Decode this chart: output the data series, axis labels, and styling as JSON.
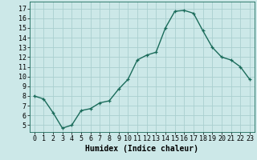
{
  "x": [
    0,
    1,
    2,
    3,
    4,
    5,
    6,
    7,
    8,
    9,
    10,
    11,
    12,
    13,
    14,
    15,
    16,
    17,
    18,
    19,
    20,
    21,
    22,
    23
  ],
  "y": [
    8.0,
    7.7,
    6.3,
    4.7,
    5.0,
    6.5,
    6.7,
    7.3,
    7.5,
    8.7,
    9.7,
    11.7,
    12.2,
    12.5,
    15.0,
    16.7,
    16.8,
    16.5,
    14.7,
    13.0,
    12.0,
    11.7,
    11.0,
    9.7
  ],
  "xlabel": "Humidex (Indice chaleur)",
  "xlim": [
    -0.5,
    23.5
  ],
  "ylim": [
    4.3,
    17.7
  ],
  "yticks": [
    5,
    6,
    7,
    8,
    9,
    10,
    11,
    12,
    13,
    14,
    15,
    16,
    17
  ],
  "xticks": [
    0,
    1,
    2,
    3,
    4,
    5,
    6,
    7,
    8,
    9,
    10,
    11,
    12,
    13,
    14,
    15,
    16,
    17,
    18,
    19,
    20,
    21,
    22,
    23
  ],
  "line_color": "#1a6b5a",
  "marker": "+",
  "bg_color": "#cce8e8",
  "grid_color": "#aacfcf",
  "label_fontsize": 7.0,
  "tick_fontsize": 6.0
}
